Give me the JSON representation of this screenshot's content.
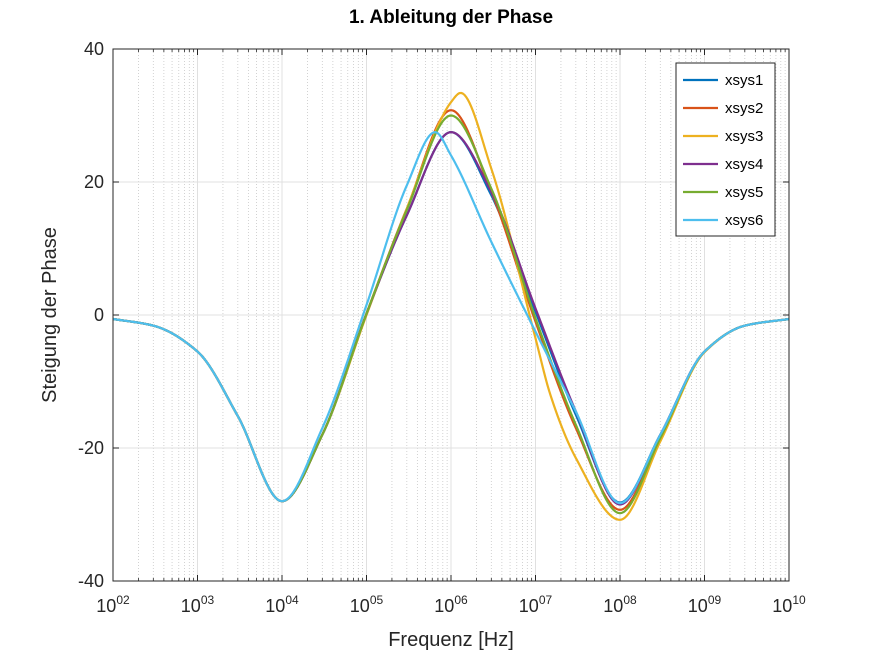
{
  "chart_data": {
    "type": "line",
    "title": "1. Ableitung der Phase",
    "xlabel": "Frequenz [Hz]",
    "ylabel": "Steigung der Phase",
    "xscale": "log",
    "xlim": [
      100,
      10000000000
    ],
    "ylim": [
      -40,
      40
    ],
    "x_ticks": [
      {
        "base": "10",
        "exp": "02",
        "value": 100
      },
      {
        "base": "10",
        "exp": "03",
        "value": 1000
      },
      {
        "base": "10",
        "exp": "04",
        "value": 10000
      },
      {
        "base": "10",
        "exp": "05",
        "value": 100000
      },
      {
        "base": "10",
        "exp": "06",
        "value": 1000000
      },
      {
        "base": "10",
        "exp": "07",
        "value": 10000000
      },
      {
        "base": "10",
        "exp": "08",
        "value": 100000000
      },
      {
        "base": "10",
        "exp": "09",
        "value": 1000000000
      },
      {
        "base": "10",
        "exp": "10",
        "value": 10000000000
      }
    ],
    "y_ticks": [
      {
        "label": "40",
        "value": 40
      },
      {
        "label": "20",
        "value": 20
      },
      {
        "label": "0",
        "value": 0
      },
      {
        "label": "-20",
        "value": -20
      },
      {
        "label": "-40",
        "value": -40
      }
    ],
    "grid": true,
    "minor_grid_x": true,
    "legend_position": "top-right",
    "series": [
      {
        "name": "xsys1",
        "color": "#0072BD",
        "x": [
          100,
          300,
          1000,
          3000,
          10000,
          30000,
          100000,
          300000,
          1000000,
          3000000,
          10000000,
          30000000,
          100000000,
          300000000,
          1000000000,
          3000000000,
          10000000000
        ],
        "y": [
          -0.6,
          -1.6,
          -5.5,
          -15.2,
          -28.0,
          -18.0,
          0.2,
          15.0,
          27.5,
          18.0,
          0.5,
          -15.0,
          -28.2,
          -18.0,
          -5.5,
          -1.6,
          -0.6
        ]
      },
      {
        "name": "xsys2",
        "color": "#D95319",
        "x": [
          100,
          300,
          1000,
          3000,
          10000,
          30000,
          100000,
          300000,
          1000000,
          3000000,
          10000000,
          30000000,
          100000000,
          300000000,
          1000000000,
          3000000000,
          10000000000
        ],
        "y": [
          -0.6,
          -1.6,
          -5.5,
          -15.2,
          -28.0,
          -18.0,
          0.2,
          16.0,
          30.8,
          18.5,
          -1.0,
          -17.0,
          -29.3,
          -18.5,
          -5.5,
          -1.6,
          -0.6
        ]
      },
      {
        "name": "xsys3",
        "color": "#EDB120",
        "x": [
          100,
          300,
          1000,
          3000,
          10000,
          30000,
          100000,
          300000,
          1000000,
          1300000,
          3000000,
          10000000,
          15000000,
          30000000,
          100000000,
          300000000,
          1000000000,
          3000000000,
          10000000000
        ],
        "y": [
          -0.6,
          -1.6,
          -5.5,
          -15.2,
          -28.0,
          -18.0,
          0.0,
          16.0,
          32.0,
          33.4,
          22.0,
          -3.5,
          -12.0,
          -21.5,
          -30.8,
          -19.0,
          -5.6,
          -1.6,
          -0.6
        ]
      },
      {
        "name": "xsys4",
        "color": "#7E2F8E",
        "x": [
          100,
          300,
          1000,
          3000,
          10000,
          30000,
          100000,
          300000,
          1000000,
          3000000,
          10000000,
          30000000,
          100000000,
          300000000,
          1000000000,
          3000000000,
          10000000000
        ],
        "y": [
          -0.6,
          -1.6,
          -5.5,
          -15.2,
          -28.0,
          -18.0,
          0.2,
          15.0,
          27.5,
          18.5,
          1.0,
          -14.5,
          -28.5,
          -18.0,
          -5.5,
          -1.6,
          -0.6
        ]
      },
      {
        "name": "xsys5",
        "color": "#77AC30",
        "x": [
          100,
          300,
          1000,
          3000,
          10000,
          30000,
          100000,
          300000,
          1000000,
          3000000,
          10000000,
          30000000,
          100000000,
          300000000,
          1000000000,
          3000000000,
          10000000000
        ],
        "y": [
          -0.6,
          -1.6,
          -5.5,
          -15.2,
          -28.0,
          -18.0,
          0.2,
          15.8,
          30.0,
          19.0,
          -0.5,
          -16.5,
          -29.8,
          -18.5,
          -5.5,
          -1.6,
          -0.6
        ]
      },
      {
        "name": "xsys6",
        "color": "#4DBEEE",
        "x": [
          100,
          300,
          1000,
          3000,
          10000,
          30000,
          100000,
          300000,
          650000,
          1000000,
          3000000,
          10000000,
          30000000,
          100000000,
          300000000,
          1000000000,
          3000000000,
          10000000000
        ],
        "y": [
          -0.6,
          -1.6,
          -5.5,
          -15.2,
          -28.0,
          -17.0,
          1.5,
          19.5,
          27.5,
          24.0,
          11.0,
          -2.5,
          -14.5,
          -28.3,
          -18.0,
          -5.5,
          -1.6,
          -0.6
        ]
      }
    ]
  }
}
